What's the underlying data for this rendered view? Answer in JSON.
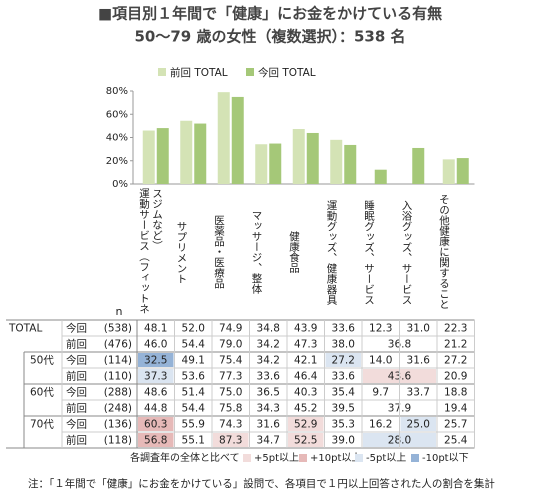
{
  "title": "■項目別１年間で「健康」にお金をかけている有無",
  "subtitle": "50～79 歳の女性（複数選択）：538 名",
  "chart_data": {
    "type": "bar",
    "categories": [
      "運動サービス（フィットネスジムなど）",
      "サプリメント",
      "医薬品・医療品",
      "マッサージ、整体",
      "健康食品",
      "運動グッズ、健康器具",
      "睡眠グッズ、サービス",
      "入浴グッズ、サービス",
      "その他健康に関すること"
    ],
    "series": [
      {
        "name": "前回 TOTAL",
        "color": "#d4e3b5",
        "values": [
          46.0,
          54.4,
          79.0,
          34.2,
          47.3,
          38.0,
          null,
          null,
          21.2
        ]
      },
      {
        "name": "今回 TOTAL",
        "color": "#a5c878",
        "values": [
          48.1,
          52.0,
          74.9,
          34.8,
          43.9,
          33.6,
          12.3,
          31.0,
          22.3
        ]
      }
    ],
    "ylim": [
      0,
      80
    ],
    "yticks": [
      {
        "value": 0,
        "label": "0%"
      },
      {
        "value": 20,
        "label": "20%"
      },
      {
        "value": 40,
        "label": "40%"
      },
      {
        "value": 60,
        "label": "60%"
      },
      {
        "value": 80,
        "label": "80%"
      }
    ],
    "grid": false
  },
  "table": {
    "n_label": "n",
    "rows": [
      {
        "group": "TOTAL",
        "wave": "今回",
        "n": "(538)",
        "cells": [
          "48.1",
          "52.0",
          "74.9",
          "34.8",
          "43.9",
          "33.6",
          "12.3",
          "31.0",
          "22.3"
        ]
      },
      {
        "wave": "前回",
        "n": "(476)",
        "cells": [
          "46.0",
          "54.4",
          "79.0",
          "34.2",
          "47.3",
          "38.0",
          {
            "text": "36.8",
            "span": 2
          },
          "21.2"
        ]
      },
      {
        "group": "50代",
        "wave": "今回",
        "n": "(114)",
        "cells": [
          {
            "text": "32.5",
            "shade": 3
          },
          "49.1",
          "75.4",
          "34.2",
          "42.1",
          {
            "text": "27.2",
            "shade": 2
          },
          "14.0",
          "31.6",
          "27.2"
        ]
      },
      {
        "wave": "前回",
        "n": "(110)",
        "cells": [
          {
            "text": "37.3",
            "shade": 2
          },
          "53.6",
          "77.3",
          "33.6",
          "46.4",
          "33.6",
          {
            "text": "43.6",
            "span": 2,
            "shade": 0
          },
          "20.9"
        ]
      },
      {
        "group": "60代",
        "wave": "今回",
        "n": "(288)",
        "cells": [
          "48.6",
          "51.4",
          "75.0",
          "36.5",
          "40.3",
          "35.4",
          "9.7",
          "33.7",
          "18.8"
        ]
      },
      {
        "wave": "前回",
        "n": "(248)",
        "cells": [
          "44.8",
          "54.4",
          "75.8",
          "34.3",
          "45.2",
          "39.5",
          {
            "text": "37.9",
            "span": 2
          },
          "19.4"
        ]
      },
      {
        "group": "70代",
        "wave": "今回",
        "n": "(136)",
        "cells": [
          {
            "text": "60.3",
            "shade": 1
          },
          "55.9",
          "74.3",
          "31.6",
          {
            "text": "52.9",
            "shade": 0
          },
          "35.3",
          "16.2",
          {
            "text": "25.0",
            "shade": 2
          },
          "25.7"
        ]
      },
      {
        "wave": "前回",
        "n": "(118)",
        "cells": [
          {
            "text": "56.8",
            "shade": 1
          },
          "55.1",
          {
            "text": "87.3",
            "shade": 0
          },
          "34.7",
          {
            "text": "52.5",
            "shade": 0
          },
          "39.0",
          {
            "text": "28.0",
            "span": 2,
            "shade": 2
          },
          "25.4"
        ]
      }
    ],
    "legend": {
      "title": "各調査年の全体と比べて",
      "items": [
        {
          "label": "+5pt以上",
          "color": "#f2dcdb"
        },
        {
          "label": "+10pt以上",
          "color": "#e6b9b8"
        },
        {
          "label": "-5pt以上",
          "color": "#dbe5f1"
        },
        {
          "label": "-10pt以下",
          "color": "#95b3d7"
        }
      ]
    }
  },
  "note": "注：「１年間で「健康」にお金をかけている」設問で、各項目で１円以上回答された人の割合を集計"
}
